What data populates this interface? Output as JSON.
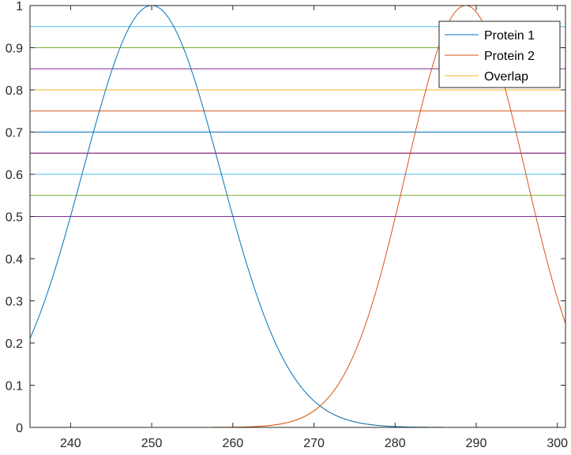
{
  "chart_data": {
    "type": "line",
    "xlim": [
      235,
      301
    ],
    "ylim": [
      0,
      1
    ],
    "x_ticks": [
      240,
      250,
      260,
      270,
      280,
      290,
      300
    ],
    "y_ticks": [
      0,
      0.1,
      0.2,
      0.3,
      0.4,
      0.5,
      0.6,
      0.7,
      0.8,
      0.9,
      1
    ],
    "x_tick_labels": [
      "240",
      "250",
      "260",
      "270",
      "280",
      "290",
      "300"
    ],
    "y_tick_labels": [
      "0",
      "0.1",
      "0.2",
      "0.3",
      "0.4",
      "0.5",
      "0.6",
      "0.7",
      "0.8",
      "0.9",
      "1"
    ],
    "legend_position": "top-right",
    "series": [
      {
        "name": "Protein 1",
        "model": "gaussian",
        "center": 250,
        "sigma": 8.5,
        "amplitude": 1,
        "color": "#0072BD"
      },
      {
        "name": "Protein 2",
        "model": "gaussian",
        "center": 288.7,
        "sigma": 7.35,
        "amplitude": 1,
        "color": "#D95319"
      },
      {
        "name": "Overlap",
        "model": "min-of-series",
        "color": "#EDB120"
      }
    ],
    "horizontal_lines": [
      {
        "y": 0.5,
        "color": "#7E2F8E"
      },
      {
        "y": 0.55,
        "color": "#77AC30"
      },
      {
        "y": 0.6,
        "color": "#4DBEEE"
      },
      {
        "y": 0.65,
        "color": "#A2142F"
      },
      {
        "y": 0.65,
        "color": "#7E2F8E",
        "overlay": true
      },
      {
        "y": 0.7,
        "color": "#0072BD"
      },
      {
        "y": 0.75,
        "color": "#D95319"
      },
      {
        "y": 0.8,
        "color": "#EDB120"
      },
      {
        "y": 0.85,
        "color": "#7E2F8E"
      },
      {
        "y": 0.9,
        "color": "#77AC30"
      },
      {
        "y": 0.95,
        "color": "#4DBEEE"
      }
    ]
  }
}
